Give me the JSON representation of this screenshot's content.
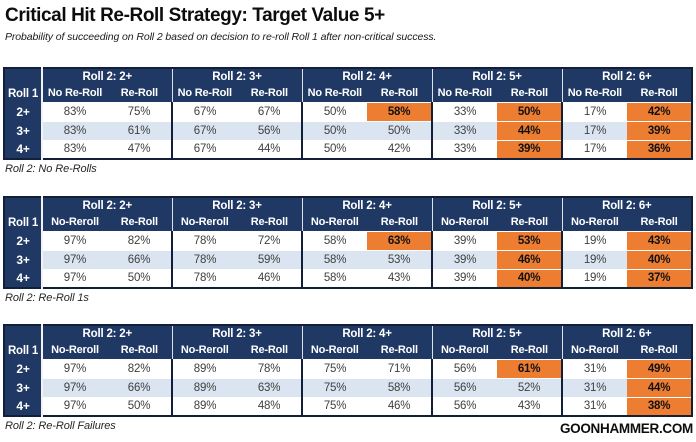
{
  "page": {
    "title": "Critical Hit Re-Roll Strategy: Target Value 5+",
    "subtitle": "Probability of succeeding on Roll 2 based on decision to re-roll Roll 1 after non-critical success.",
    "footer": "GOONHAMMER.COM"
  },
  "colors": {
    "header_navy": "#1f3864",
    "highlight_orange": "#ed7d31",
    "stripe_blue": "#dbe5f1",
    "border_dark": "#131f38"
  },
  "chart_data": [
    {
      "type": "table",
      "caption": "Roll 2: No Re-Rolls",
      "row_header_label": "Roll 1",
      "col_groups": [
        "Roll 2: 2+",
        "Roll 2: 3+",
        "Roll 2: 4+",
        "Roll 2: 5+",
        "Roll 2: 6+"
      ],
      "sub_cols": [
        "No Re-Roll",
        "Re-Roll"
      ],
      "rows": [
        {
          "label": "2+",
          "cells": [
            {
              "v": "83%"
            },
            {
              "v": "75%"
            },
            {
              "v": "67%"
            },
            {
              "v": "67%"
            },
            {
              "v": "50%"
            },
            {
              "v": "58%",
              "hl": true
            },
            {
              "v": "33%"
            },
            {
              "v": "50%",
              "hl": true
            },
            {
              "v": "17%"
            },
            {
              "v": "42%",
              "hl": true
            }
          ]
        },
        {
          "label": "3+",
          "cells": [
            {
              "v": "83%"
            },
            {
              "v": "61%"
            },
            {
              "v": "67%"
            },
            {
              "v": "56%"
            },
            {
              "v": "50%"
            },
            {
              "v": "50%"
            },
            {
              "v": "33%"
            },
            {
              "v": "44%",
              "hl": true
            },
            {
              "v": "17%"
            },
            {
              "v": "39%",
              "hl": true
            }
          ]
        },
        {
          "label": "4+",
          "cells": [
            {
              "v": "83%"
            },
            {
              "v": "47%"
            },
            {
              "v": "67%"
            },
            {
              "v": "44%"
            },
            {
              "v": "50%"
            },
            {
              "v": "42%"
            },
            {
              "v": "33%"
            },
            {
              "v": "39%",
              "hl": true
            },
            {
              "v": "17%"
            },
            {
              "v": "36%",
              "hl": true
            }
          ]
        }
      ]
    },
    {
      "type": "table",
      "caption": "Roll 2: Re-Roll 1s",
      "row_header_label": "Roll 1",
      "col_groups": [
        "Roll 2: 2+",
        "Roll 2: 3+",
        "Roll 2: 4+",
        "Roll 2: 5+",
        "Roll 2: 6+"
      ],
      "sub_cols": [
        "No-Reroll",
        "Re-Roll"
      ],
      "rows": [
        {
          "label": "2+",
          "cells": [
            {
              "v": "97%"
            },
            {
              "v": "82%"
            },
            {
              "v": "78%"
            },
            {
              "v": "72%"
            },
            {
              "v": "58%"
            },
            {
              "v": "63%",
              "hl": true
            },
            {
              "v": "39%"
            },
            {
              "v": "53%",
              "hl": true
            },
            {
              "v": "19%"
            },
            {
              "v": "43%",
              "hl": true
            }
          ]
        },
        {
          "label": "3+",
          "cells": [
            {
              "v": "97%"
            },
            {
              "v": "66%"
            },
            {
              "v": "78%"
            },
            {
              "v": "59%"
            },
            {
              "v": "58%"
            },
            {
              "v": "53%"
            },
            {
              "v": "39%"
            },
            {
              "v": "46%",
              "hl": true
            },
            {
              "v": "19%"
            },
            {
              "v": "40%",
              "hl": true
            }
          ]
        },
        {
          "label": "4+",
          "cells": [
            {
              "v": "97%"
            },
            {
              "v": "50%"
            },
            {
              "v": "78%"
            },
            {
              "v": "46%"
            },
            {
              "v": "58%"
            },
            {
              "v": "43%"
            },
            {
              "v": "39%"
            },
            {
              "v": "40%",
              "hl": true
            },
            {
              "v": "19%"
            },
            {
              "v": "37%",
              "hl": true
            }
          ]
        }
      ]
    },
    {
      "type": "table",
      "caption": "Roll 2: Re-Roll Failures",
      "row_header_label": "Roll 1",
      "col_groups": [
        "Roll 2: 2+",
        "Roll 2: 3+",
        "Roll 2: 4+",
        "Roll 2: 5+",
        "Roll 2: 6+"
      ],
      "sub_cols": [
        "No-Reroll",
        "Re-Roll"
      ],
      "rows": [
        {
          "label": "2+",
          "cells": [
            {
              "v": "97%"
            },
            {
              "v": "82%"
            },
            {
              "v": "89%"
            },
            {
              "v": "78%"
            },
            {
              "v": "75%"
            },
            {
              "v": "71%"
            },
            {
              "v": "56%"
            },
            {
              "v": "61%",
              "hl": true
            },
            {
              "v": "31%"
            },
            {
              "v": "49%",
              "hl": true
            }
          ]
        },
        {
          "label": "3+",
          "cells": [
            {
              "v": "97%"
            },
            {
              "v": "66%"
            },
            {
              "v": "89%"
            },
            {
              "v": "63%"
            },
            {
              "v": "75%"
            },
            {
              "v": "58%"
            },
            {
              "v": "56%"
            },
            {
              "v": "52%"
            },
            {
              "v": "31%"
            },
            {
              "v": "44%",
              "hl": true
            }
          ]
        },
        {
          "label": "4+",
          "cells": [
            {
              "v": "97%"
            },
            {
              "v": "50%"
            },
            {
              "v": "89%"
            },
            {
              "v": "48%"
            },
            {
              "v": "75%"
            },
            {
              "v": "46%"
            },
            {
              "v": "56%"
            },
            {
              "v": "43%"
            },
            {
              "v": "31%"
            },
            {
              "v": "38%",
              "hl": true
            }
          ]
        }
      ]
    }
  ]
}
